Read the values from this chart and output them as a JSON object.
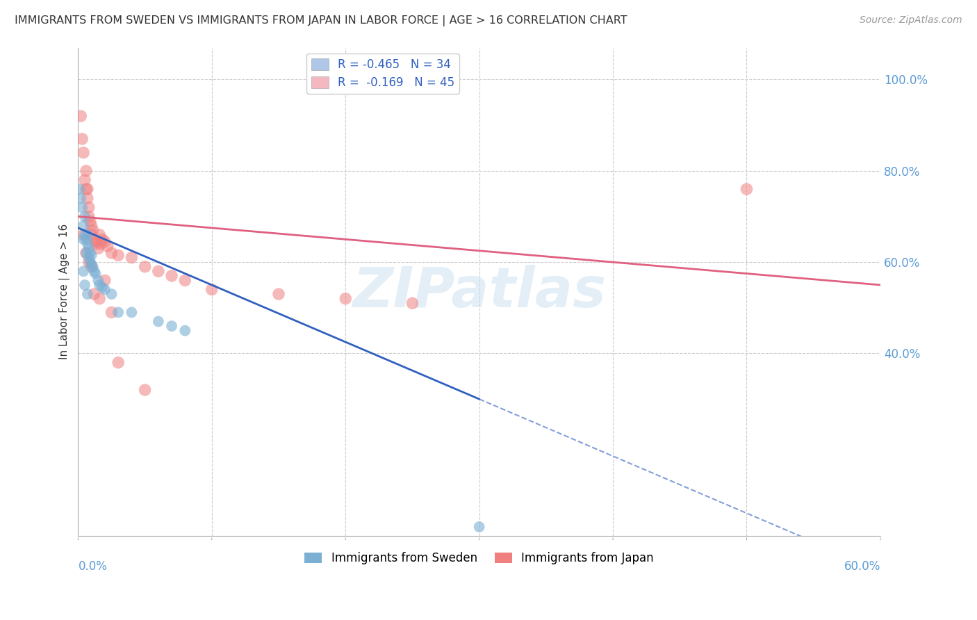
{
  "title": "IMMIGRANTS FROM SWEDEN VS IMMIGRANTS FROM JAPAN IN LABOR FORCE | AGE > 16 CORRELATION CHART",
  "source": "Source: ZipAtlas.com",
  "ylabel": "In Labor Force | Age > 16",
  "ylabel_right_ticks": [
    "100.0%",
    "80.0%",
    "60.0%",
    "40.0%"
  ],
  "ylabel_right_values": [
    1.0,
    0.8,
    0.6,
    0.4
  ],
  "legend_entries": [
    {
      "label": "R = -0.465   N = 34",
      "color": "#aec6e8"
    },
    {
      "label": "R =  -0.169   N = 45",
      "color": "#f4b8c1"
    }
  ],
  "legend_bottom": [
    {
      "label": "Immigrants from Sweden",
      "color": "#aec6e8"
    },
    {
      "label": "Immigrants from Japan",
      "color": "#f4b8c1"
    }
  ],
  "sweden_color": "#7bafd4",
  "japan_color": "#f08080",
  "sweden_line_color": "#3060c0",
  "japan_line_color": "#e06080",
  "watermark": "ZIPatlas",
  "xlim_min": 0.0,
  "xlim_max": 0.6,
  "ylim_min": 0.0,
  "ylim_max": 1.07,
  "xgrid_ticks": [
    0.0,
    0.1,
    0.2,
    0.3,
    0.4,
    0.5,
    0.6
  ],
  "ygrid_ticks": [
    0.4,
    0.6,
    0.8,
    1.0
  ],
  "sweden_x": [
    0.001,
    0.002,
    0.003,
    0.004,
    0.004,
    0.005,
    0.005,
    0.006,
    0.006,
    0.007,
    0.007,
    0.008,
    0.008,
    0.009,
    0.009,
    0.01,
    0.01,
    0.011,
    0.012,
    0.013,
    0.015,
    0.016,
    0.018,
    0.02,
    0.025,
    0.03,
    0.04,
    0.06,
    0.07,
    0.08,
    0.004,
    0.005,
    0.007,
    0.3
  ],
  "sweden_y": [
    0.76,
    0.74,
    0.72,
    0.65,
    0.68,
    0.66,
    0.7,
    0.62,
    0.65,
    0.64,
    0.66,
    0.61,
    0.63,
    0.6,
    0.62,
    0.595,
    0.615,
    0.59,
    0.58,
    0.575,
    0.56,
    0.55,
    0.545,
    0.54,
    0.53,
    0.49,
    0.49,
    0.47,
    0.46,
    0.45,
    0.58,
    0.55,
    0.53,
    0.02
  ],
  "japan_x": [
    0.002,
    0.003,
    0.004,
    0.005,
    0.006,
    0.006,
    0.007,
    0.007,
    0.008,
    0.008,
    0.009,
    0.01,
    0.01,
    0.011,
    0.012,
    0.013,
    0.014,
    0.015,
    0.016,
    0.017,
    0.018,
    0.02,
    0.022,
    0.025,
    0.03,
    0.04,
    0.05,
    0.06,
    0.07,
    0.08,
    0.1,
    0.15,
    0.2,
    0.25,
    0.5,
    0.004,
    0.006,
    0.008,
    0.01,
    0.012,
    0.016,
    0.02,
    0.025,
    0.03,
    0.05
  ],
  "japan_y": [
    0.92,
    0.87,
    0.84,
    0.78,
    0.76,
    0.8,
    0.74,
    0.76,
    0.72,
    0.7,
    0.69,
    0.68,
    0.66,
    0.67,
    0.65,
    0.64,
    0.645,
    0.63,
    0.66,
    0.64,
    0.65,
    0.645,
    0.635,
    0.62,
    0.615,
    0.61,
    0.59,
    0.58,
    0.57,
    0.56,
    0.54,
    0.53,
    0.52,
    0.51,
    0.76,
    0.66,
    0.62,
    0.6,
    0.59,
    0.53,
    0.52,
    0.56,
    0.49,
    0.38,
    0.32
  ]
}
